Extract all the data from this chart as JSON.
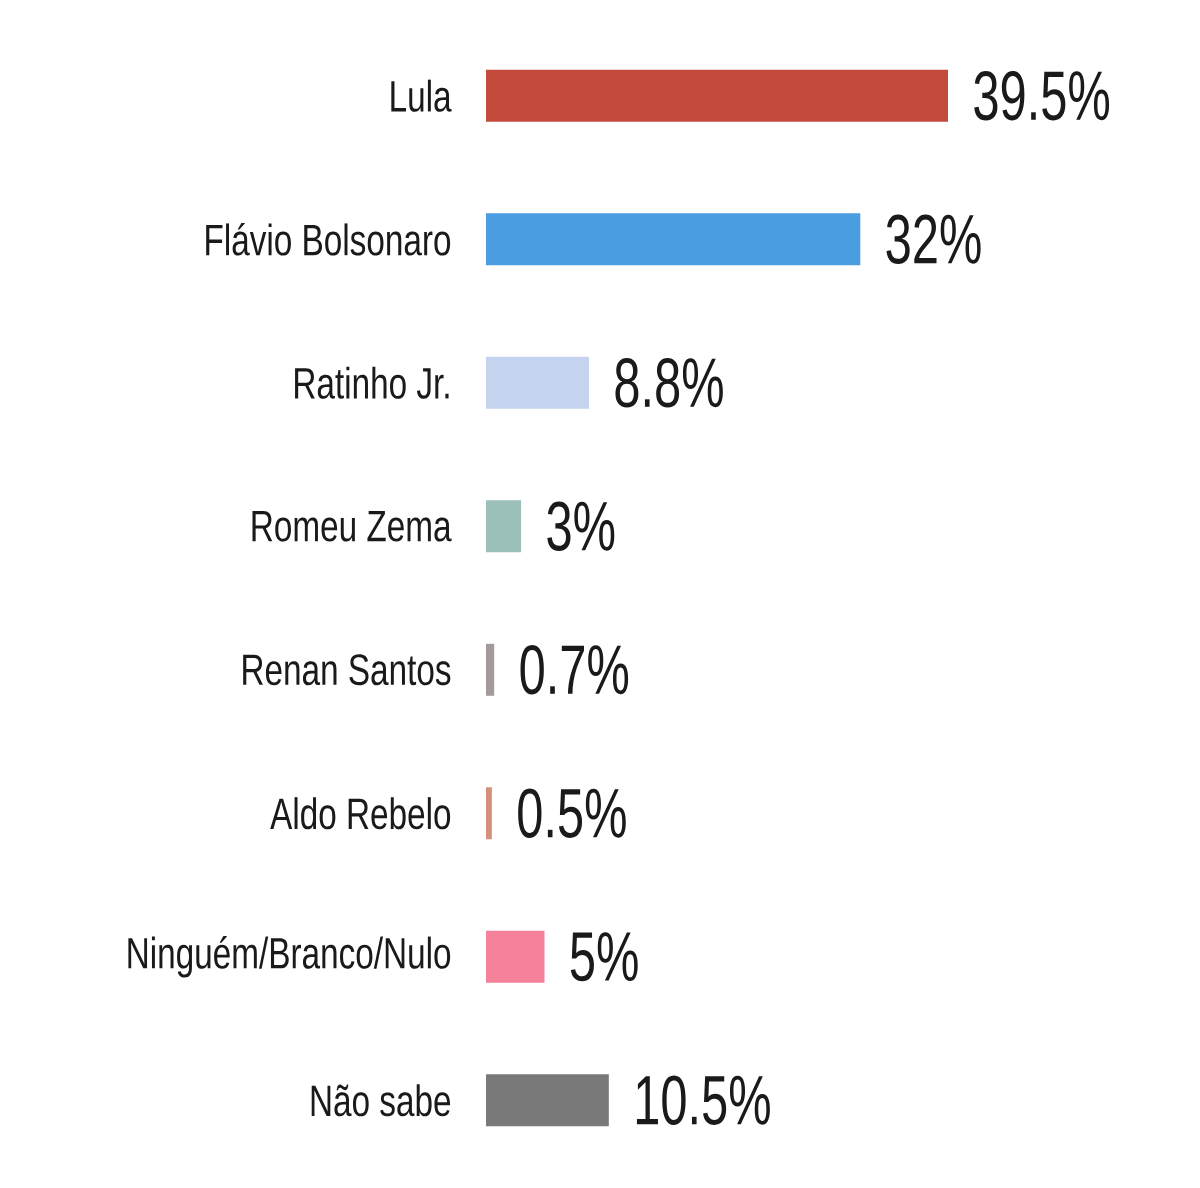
{
  "chart_data": {
    "type": "bar",
    "orientation": "horizontal",
    "categories": [
      "Lula",
      "Flávio Bolsonaro",
      "Ratinho Jr.",
      "Romeu Zema",
      "Renan Santos",
      "Aldo Rebelo",
      "Ninguém/Branco/Nulo",
      "Não sabe"
    ],
    "values": [
      39.5,
      32,
      8.8,
      3,
      0.7,
      0.5,
      5,
      10.5
    ],
    "colors": [
      "#c44a3c",
      "#4a9de0",
      "#c5d3ee",
      "#9bc0b9",
      "#a39a9a",
      "#d4907a",
      "#f5829a",
      "#797979"
    ],
    "value_labels": [
      "39.5%",
      "32%",
      "8.8%",
      "3%",
      "0.7%",
      "0.5%",
      "5%",
      "10.5%"
    ]
  }
}
